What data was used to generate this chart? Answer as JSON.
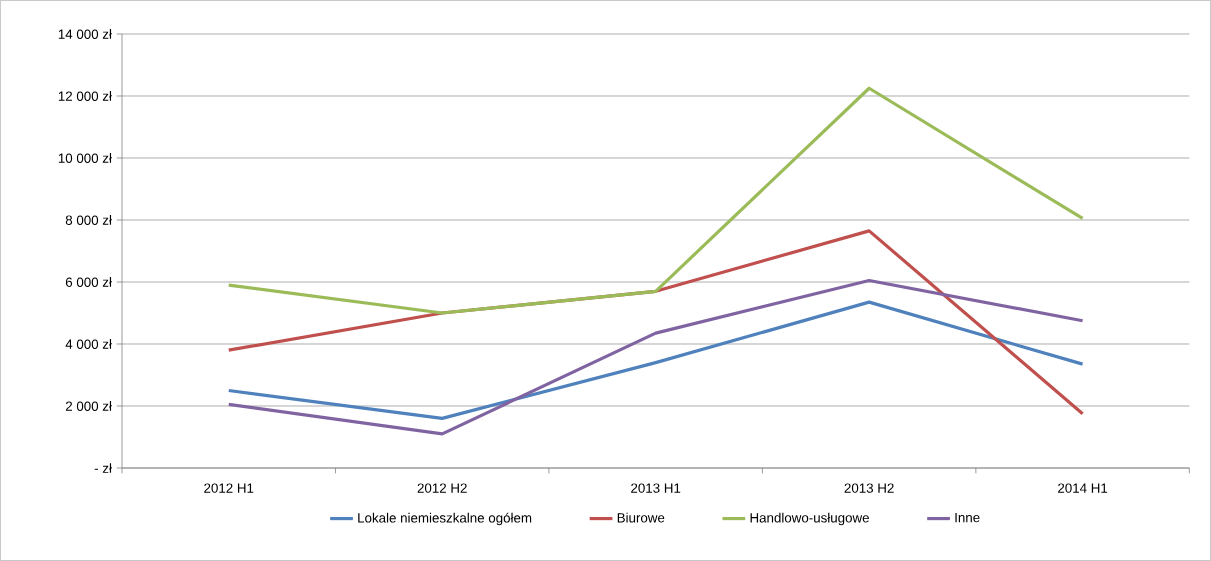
{
  "chart_data": {
    "type": "line",
    "categories": [
      "2012 H1",
      "2012 H2",
      "2013 H1",
      "2013 H2",
      "2014 H1"
    ],
    "series": [
      {
        "name": "Lokale niemieszkalne ogółem",
        "color": "#4f81bd",
        "values": [
          2500,
          1600,
          3400,
          5350,
          3350
        ]
      },
      {
        "name": "Biurowe",
        "color": "#c0504d",
        "values": [
          3800,
          5000,
          5700,
          7650,
          1750
        ]
      },
      {
        "name": "Handlowo-usługowe",
        "color": "#9bbb59",
        "values": [
          5900,
          5000,
          5700,
          12250,
          8050
        ]
      },
      {
        "name": "Inne",
        "color": "#8064a2",
        "values": [
          2050,
          1100,
          4350,
          6050,
          4750
        ]
      }
    ],
    "ylim": [
      0,
      14000
    ],
    "yticks": [
      {
        "value": 0,
        "label": "-  zł"
      },
      {
        "value": 2000,
        "label": "2 000 zł"
      },
      {
        "value": 4000,
        "label": "4 000 zł"
      },
      {
        "value": 6000,
        "label": "6 000 zł"
      },
      {
        "value": 8000,
        "label": "8 000 zł"
      },
      {
        "value": 10000,
        "label": "10 000 zł"
      },
      {
        "value": 12000,
        "label": "12 000 zł"
      },
      {
        "value": 14000,
        "label": "14 000 zł"
      }
    ],
    "grid": "y",
    "legend": "bottom",
    "marker": "none",
    "line_style": "solid"
  }
}
